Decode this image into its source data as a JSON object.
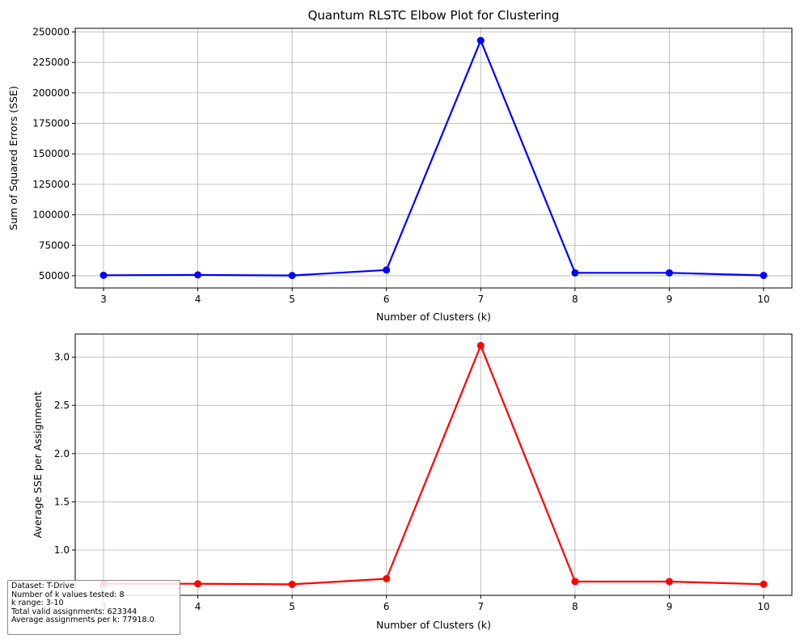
{
  "title": "Quantum RLSTC Elbow Plot for Clustering",
  "chart_data": [
    {
      "type": "line",
      "title": "Quantum RLSTC Elbow Plot for Clustering",
      "xlabel": "Number of Clusters (k)",
      "ylabel": "Sum of Squared Errors (SSE)",
      "x": [
        3,
        4,
        5,
        6,
        7,
        8,
        9,
        10
      ],
      "xticks": [
        3,
        4,
        5,
        6,
        7,
        8,
        9,
        10
      ],
      "xlim": [
        2.7,
        10.3
      ],
      "yticks": [
        50000,
        75000,
        100000,
        125000,
        150000,
        175000,
        200000,
        225000,
        250000
      ],
      "ylim": [
        40000,
        253000
      ],
      "grid": true,
      "series": [
        {
          "color": "#0000ff",
          "values": [
            50400,
            50700,
            50200,
            54700,
            243000,
            52400,
            52400,
            50300
          ]
        }
      ]
    },
    {
      "type": "line",
      "xlabel": "Number of Clusters (k)",
      "ylabel": "Average SSE per Assignment",
      "x": [
        3,
        4,
        5,
        6,
        7,
        8,
        9,
        10
      ],
      "xticks": [
        3,
        4,
        5,
        6,
        7,
        8,
        9,
        10
      ],
      "xlim": [
        2.7,
        10.3
      ],
      "yticks": [
        1.0,
        1.5,
        2.0,
        2.5,
        3.0
      ],
      "ytick_labels": [
        "1.0",
        "1.5",
        "2.0",
        "2.5",
        "3.0"
      ],
      "ylim": [
        0.53,
        3.24
      ],
      "grid": true,
      "series": [
        {
          "color": "#ff0000",
          "values": [
            0.65,
            0.65,
            0.644,
            0.702,
            3.12,
            0.673,
            0.673,
            0.645
          ]
        }
      ]
    }
  ],
  "info_box": {
    "lines": [
      "Dataset: T-Drive",
      "Number of k values tested: 8",
      "k range: 3-10",
      "Total valid assignments: 623344",
      "Average assignments per k: 77918.0"
    ]
  }
}
